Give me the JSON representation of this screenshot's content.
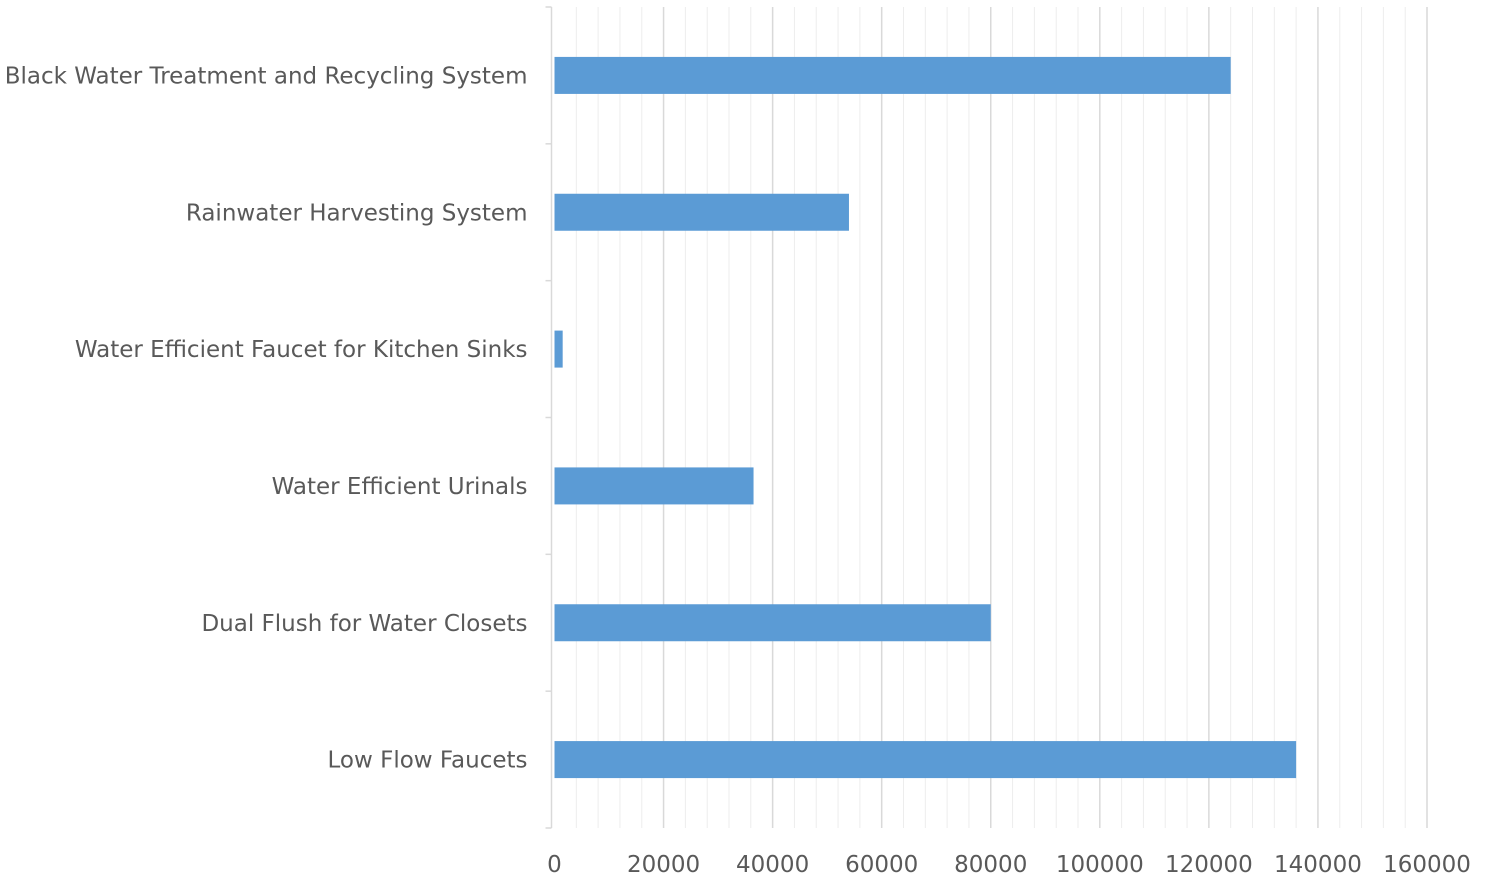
{
  "chart_data": {
    "type": "bar",
    "orientation": "horizontal",
    "title": "",
    "xlabel": "",
    "ylabel": "",
    "categories": [
      "Black Water Treatment and Recycling System",
      "Rainwater Harvesting System",
      "Water Efficient Faucet for Kitchen Sinks",
      "Water Efficient Urinals",
      "Dual Flush for Water Closets",
      "Low Flow Faucets"
    ],
    "values": [
      124000,
      54000,
      1500,
      36500,
      80000,
      136000
    ],
    "xlim": [
      0,
      160000
    ],
    "x_ticks": [
      "0",
      "20000",
      "40000",
      "60000",
      "80000",
      "100000",
      "120000",
      "140000",
      "160000"
    ],
    "x_tick_values": [
      0,
      20000,
      40000,
      60000,
      80000,
      100000,
      120000,
      140000,
      160000
    ],
    "minor_grid_step": 4000,
    "grid": true,
    "legend": "none",
    "colors": {
      "bar": "#5B9BD5",
      "major_grid": "#D9D9D9",
      "minor_grid": "#EDEDED",
      "axis": "#D9D9D9",
      "text": "#595959"
    }
  }
}
